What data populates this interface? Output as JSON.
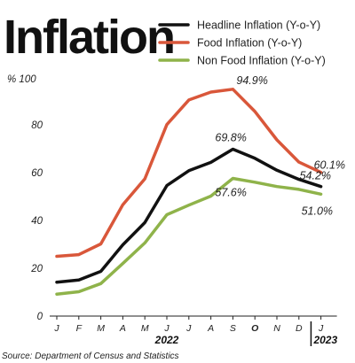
{
  "chart_data": {
    "type": "line",
    "title": "Inflation",
    "unit_label": "% 100",
    "ylim": [
      0,
      100
    ],
    "yticks": [
      0,
      20,
      40,
      60,
      80
    ],
    "grid": false,
    "legend_position": "top-right",
    "categories": [
      "J",
      "F",
      "M",
      "A",
      "M",
      "J",
      "J",
      "A",
      "S",
      "O",
      "N",
      "D",
      "J"
    ],
    "highlighted_category_index": 9,
    "year_labels": [
      {
        "label": "2022",
        "category_index": 5
      },
      {
        "label": "2023",
        "category_index": 12
      }
    ],
    "series": [
      {
        "name": "Headline Inflation (Y-o-Y)",
        "color": "#111111",
        "values": [
          14.2,
          15.1,
          18.7,
          29.8,
          39.1,
          54.6,
          60.8,
          64.3,
          69.8,
          66.0,
          61.0,
          57.2,
          54.2
        ]
      },
      {
        "name": "Food Inflation (Y-o-Y)",
        "color": "#d9573a",
        "values": [
          25.0,
          25.7,
          30.2,
          46.6,
          57.4,
          80.1,
          90.4,
          93.7,
          94.9,
          85.6,
          73.7,
          64.4,
          60.1
        ]
      },
      {
        "name": "Non Food Inflation (Y-o-Y)",
        "color": "#8fb34a",
        "values": [
          9.2,
          10.2,
          13.6,
          22.0,
          30.6,
          42.4,
          46.4,
          50.2,
          57.6,
          56.0,
          54.2,
          53.0,
          51.0
        ]
      }
    ],
    "annotations": [
      {
        "text": "94.9%",
        "series": 1,
        "index": 8
      },
      {
        "text": "69.8%",
        "series": 0,
        "index": 8
      },
      {
        "text": "57.6%",
        "series": 2,
        "index": 8
      },
      {
        "text": "60.1%",
        "series": 1,
        "index": 12
      },
      {
        "text": "54.2%",
        "series": 0,
        "index": 12
      },
      {
        "text": "51.0%",
        "series": 2,
        "index": 12
      }
    ],
    "source": "Source: Department of Census and Statistics"
  }
}
